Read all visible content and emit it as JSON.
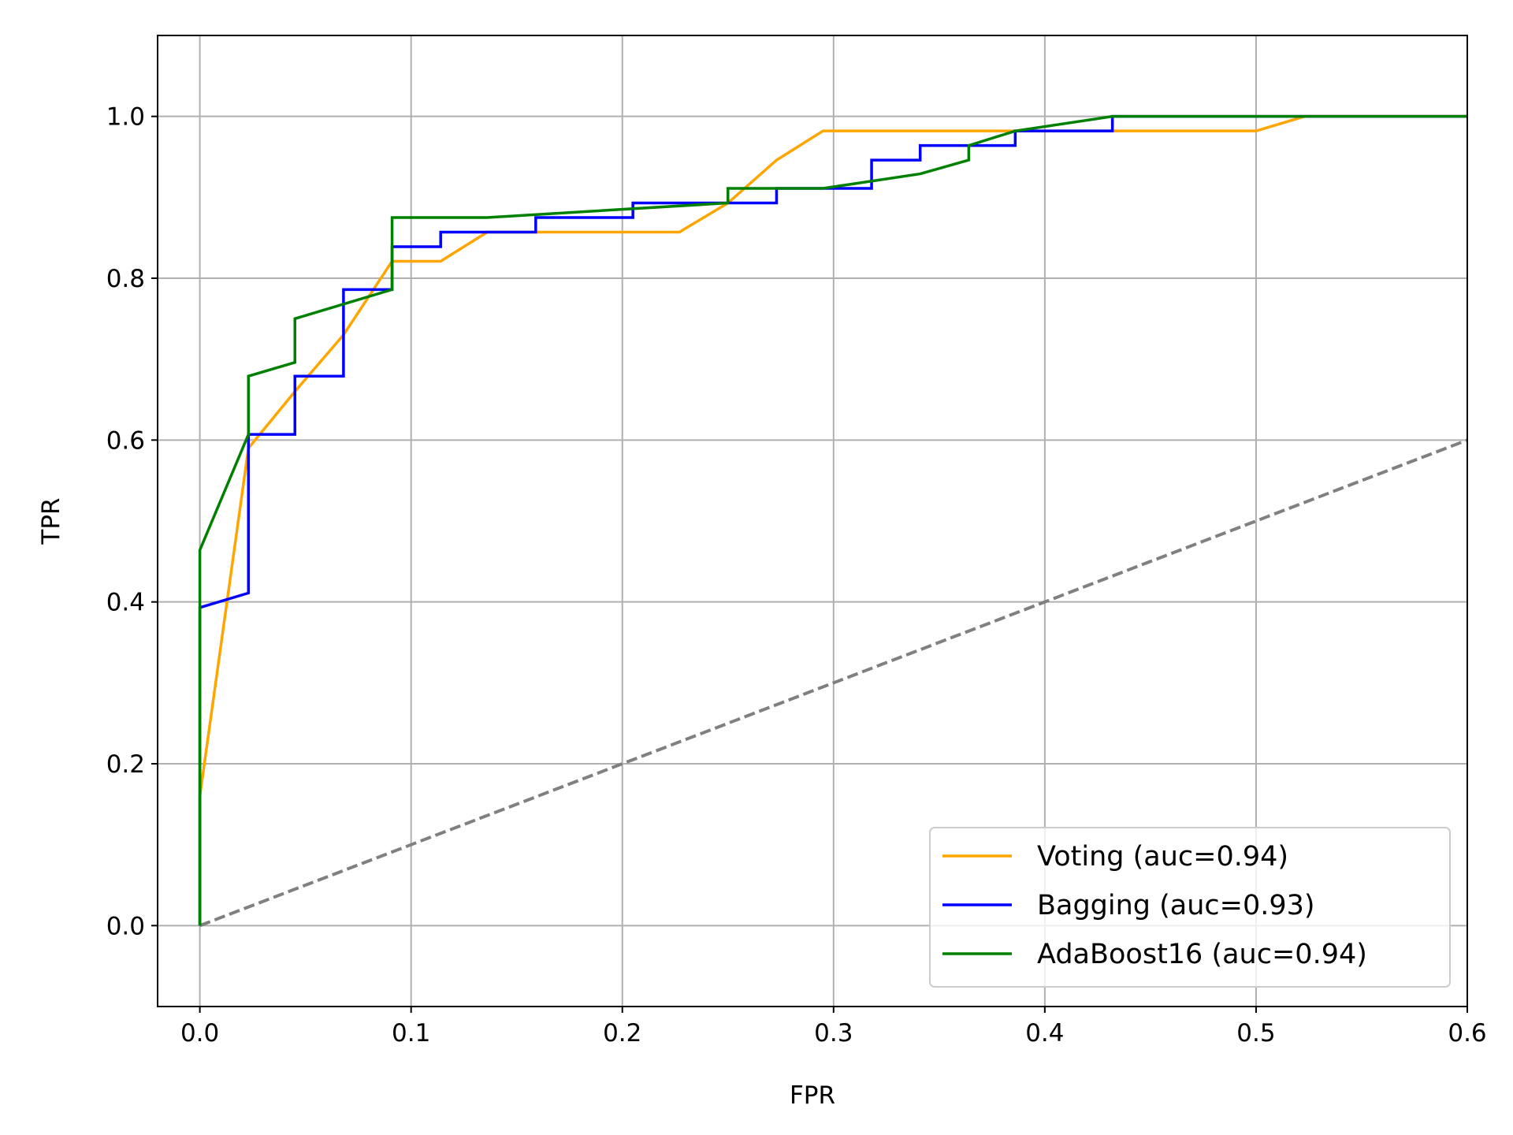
{
  "chart_data": {
    "type": "line",
    "title": "",
    "xlabel": "FPR",
    "ylabel": "TPR",
    "xlim": [
      -0.02,
      0.6
    ],
    "ylim": [
      -0.1,
      1.1
    ],
    "xticks": [
      0.0,
      0.1,
      0.2,
      0.3,
      0.4,
      0.5,
      0.6
    ],
    "xtick_labels": [
      "0.0",
      "0.1",
      "0.2",
      "0.3",
      "0.4",
      "0.5",
      "0.6"
    ],
    "yticks": [
      0.0,
      0.2,
      0.4,
      0.6,
      0.8,
      1.0
    ],
    "ytick_labels": [
      "0.0",
      "0.2",
      "0.4",
      "0.6",
      "0.8",
      "1.0"
    ],
    "grid": true,
    "legend_position": "lower-right",
    "series": [
      {
        "name": "Voting (auc=0.94)",
        "color": "#ffa500",
        "x": [
          0,
          0,
          0.023,
          0.045,
          0.068,
          0.091,
          0.114,
          0.136,
          0.159,
          0.227,
          0.25,
          0.273,
          0.295,
          0.5,
          0.523,
          0.6
        ],
        "y": [
          0,
          0.16,
          0.59,
          0.66,
          0.73,
          0.821,
          0.821,
          0.857,
          0.857,
          0.857,
          0.893,
          0.946,
          0.982,
          0.982,
          1.0,
          1.0
        ]
      },
      {
        "name": "Bagging (auc=0.93)",
        "color": "#0000ff",
        "x": [
          0,
          0,
          0.023,
          0.023,
          0.045,
          0.045,
          0.068,
          0.068,
          0.091,
          0.091,
          0.114,
          0.114,
          0.159,
          0.159,
          0.205,
          0.205,
          0.273,
          0.273,
          0.318,
          0.318,
          0.341,
          0.341,
          0.386,
          0.386,
          0.432,
          0.432,
          0.6
        ],
        "y": [
          0,
          0.393,
          0.411,
          0.607,
          0.607,
          0.679,
          0.679,
          0.786,
          0.786,
          0.839,
          0.839,
          0.857,
          0.857,
          0.875,
          0.875,
          0.893,
          0.893,
          0.911,
          0.911,
          0.946,
          0.946,
          0.964,
          0.964,
          0.982,
          0.982,
          1.0,
          1.0
        ]
      },
      {
        "name": "AdaBoost16 (auc=0.94)",
        "color": "#008000",
        "x": [
          0,
          0,
          0.023,
          0.023,
          0.045,
          0.045,
          0.091,
          0.091,
          0.136,
          0.25,
          0.25,
          0.295,
          0.341,
          0.364,
          0.364,
          0.386,
          0.432,
          0.6
        ],
        "y": [
          0,
          0.464,
          0.607,
          0.679,
          0.696,
          0.75,
          0.786,
          0.875,
          0.875,
          0.893,
          0.911,
          0.911,
          0.929,
          0.946,
          0.964,
          0.982,
          1.0,
          1.0
        ]
      }
    ],
    "reference_line": {
      "color": "#808080",
      "style": "dashed",
      "x": [
        0,
        1
      ],
      "y": [
        0,
        1
      ]
    }
  }
}
